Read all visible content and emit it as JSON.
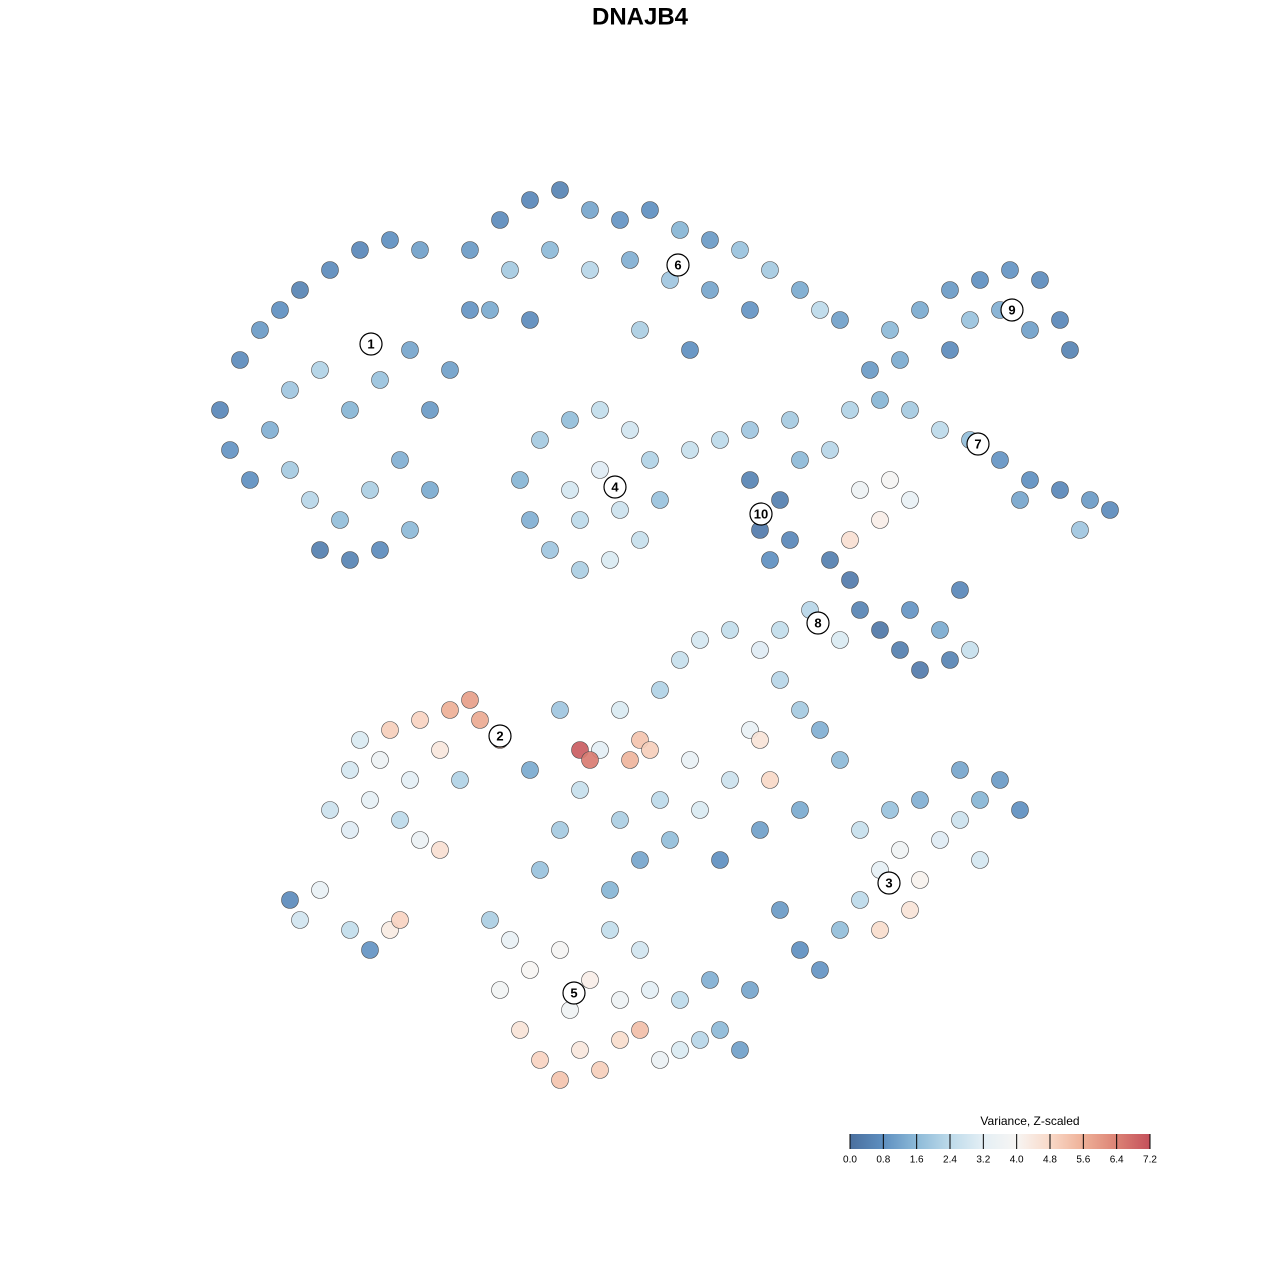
{
  "chart_data": {
    "type": "scatter",
    "title": "DNAJB4",
    "x": [
      4,
      5,
      6,
      8,
      10,
      12,
      15,
      18,
      21,
      24,
      11,
      14,
      17,
      20,
      23,
      11,
      13,
      16,
      19,
      22,
      25,
      14,
      17,
      20,
      23,
      25,
      9,
      7,
      27,
      29,
      29,
      32,
      35,
      38,
      41,
      44,
      47,
      50,
      53,
      56,
      59,
      62,
      64,
      66,
      33,
      37,
      41,
      45,
      49,
      53,
      57,
      31,
      35,
      46,
      51,
      34,
      36,
      39,
      42,
      45,
      47,
      48,
      46,
      43,
      40,
      37,
      35,
      39,
      42,
      44,
      40,
      57,
      60,
      58,
      61,
      59,
      62,
      65,
      51,
      54,
      57,
      61,
      70,
      73,
      76,
      79,
      82,
      85,
      88,
      91,
      93,
      90,
      84,
      69,
      72,
      67,
      68,
      71,
      73,
      70,
      67,
      71,
      74,
      77,
      80,
      83,
      86,
      88,
      89,
      85,
      82,
      79,
      77,
      65,
      67,
      68,
      70,
      72,
      74,
      77,
      79,
      76,
      73,
      63,
      60,
      66,
      78,
      15,
      17,
      19,
      22,
      24,
      17,
      20,
      23,
      26,
      21,
      24,
      27,
      29,
      30,
      32,
      26,
      18,
      28,
      12,
      14,
      17,
      19,
      21,
      22,
      11,
      31,
      33,
      35,
      32,
      34,
      36,
      38,
      40,
      42,
      44,
      46,
      48,
      50,
      52,
      54,
      56,
      39,
      41,
      44,
      47,
      50,
      46,
      43,
      38,
      53,
      57,
      36,
      38,
      40,
      42,
      44,
      46,
      45,
      47,
      40,
      41,
      48,
      50,
      52,
      55,
      58,
      60,
      62,
      64,
      57,
      55,
      52,
      49,
      46,
      43,
      54,
      58,
      62,
      59,
      58,
      66,
      51,
      48,
      44,
      38,
      35,
      60,
      62,
      64,
      66,
      68,
      70,
      72,
      74,
      73,
      70,
      76,
      78,
      80,
      82,
      84,
      78,
      74,
      71,
      80,
      68
    ],
    "values": [
      70,
      66,
      75,
      78,
      80,
      82,
      84,
      86,
      87,
      86,
      72,
      74,
      70,
      73,
      76,
      64,
      61,
      59,
      62,
      65,
      70,
      56,
      55,
      56,
      58,
      62,
      68,
      63,
      74,
      80,
      86,
      89,
      91,
      92,
      90,
      89,
      90,
      88,
      87,
      86,
      84,
      82,
      80,
      79,
      84,
      86,
      84,
      85,
      83,
      82,
      80,
      80,
      79,
      78,
      76,
      63,
      67,
      69,
      70,
      68,
      65,
      61,
      57,
      55,
      54,
      56,
      59,
      62,
      64,
      60,
      59,
      63,
      61,
      58,
      57,
      55,
      65,
      66,
      66,
      67,
      68,
      69,
      71,
      70,
      68,
      67,
      65,
      63,
      62,
      61,
      60,
      58,
      61,
      74,
      75,
      70,
      62,
      63,
      61,
      59,
      57,
      78,
      80,
      82,
      83,
      84,
      83,
      79,
      76,
      78,
      80,
      79,
      76,
      55,
      53,
      50,
      48,
      46,
      44,
      45,
      46,
      48,
      50,
      50,
      48,
      47,
      52,
      30,
      28,
      31,
      29,
      27,
      34,
      35,
      33,
      36,
      38,
      39,
      40,
      41,
      39,
      37,
      26,
      37,
      33,
      19,
      22,
      18,
      16,
      18,
      19,
      21,
      19,
      17,
      14,
      12,
      8,
      5,
      3,
      6,
      4,
      7,
      8,
      5,
      6,
      7,
      8,
      6,
      10,
      13,
      11,
      12,
      11,
      16,
      18,
      16,
      13,
      12,
      24,
      28,
      32,
      36,
      40,
      37,
      35,
      36,
      36,
      35,
      42,
      45,
      47,
      48,
      46,
      43,
      40,
      38,
      38,
      33,
      30,
      27,
      25,
      22,
      25,
      28,
      30,
      33,
      37,
      35,
      35,
      31,
      29,
      40,
      34,
      20,
      16,
      14,
      18,
      21,
      24,
      26,
      23,
      20,
      18,
      27,
      29,
      31,
      33,
      30,
      34,
      31,
      30,
      25,
      28
    ],
    "z": [
      0.6,
      0.9,
      0.7,
      1.0,
      0.8,
      0.5,
      0.7,
      0.6,
      0.8,
      1.1,
      1.9,
      2.2,
      1.5,
      1.8,
      1.2,
      2.0,
      2.3,
      1.7,
      2.1,
      1.4,
      1.0,
      0.4,
      0.5,
      0.7,
      1.6,
      1.3,
      1.4,
      0.8,
      1.1,
      0.9,
      1.0,
      0.7,
      0.6,
      0.5,
      1.2,
      0.9,
      0.8,
      1.5,
      1.0,
      1.8,
      2.0,
      1.3,
      2.4,
      1.1,
      2.0,
      1.6,
      2.3,
      1.4,
      1.9,
      1.2,
      0.9,
      1.3,
      0.7,
      2.1,
      0.8,
      1.5,
      2.0,
      1.7,
      2.5,
      2.8,
      2.2,
      1.8,
      2.6,
      3.0,
      2.1,
      1.9,
      1.4,
      2.9,
      3.1,
      2.7,
      2.4,
      0.5,
      0.4,
      0.3,
      0.6,
      0.8,
      1.6,
      2.3,
      2.6,
      2.4,
      1.9,
      2.0,
      1.5,
      2.0,
      2.4,
      1.7,
      0.9,
      0.8,
      0.6,
      1.0,
      0.7,
      1.9,
      1.2,
      1.0,
      1.3,
      2.2,
      3.6,
      3.9,
      3.4,
      4.2,
      4.6,
      1.6,
      1.3,
      1.0,
      0.8,
      0.9,
      0.7,
      0.6,
      0.5,
      1.1,
      1.4,
      1.8,
      0.7,
      0.4,
      0.3,
      0.5,
      0.2,
      0.4,
      0.3,
      0.5,
      2.6,
      1.3,
      0.9,
      2.3,
      2.5,
      3.0,
      0.6,
      2.7,
      3.1,
      3.3,
      2.4,
      3.5,
      2.9,
      3.6,
      3.2,
      4.4,
      5.0,
      4.9,
      5.6,
      5.9,
      5.7,
      5.3,
      4.6,
      3.0,
      2.2,
      2.8,
      3.4,
      2.5,
      0.9,
      4.3,
      4.9,
      0.7,
      2.1,
      3.4,
      4.0,
      3.8,
      4.5,
      4.9,
      5.2,
      4.4,
      5.0,
      4.7,
      5.3,
      3.5,
      3.0,
      2.3,
      1.6,
      1.1,
      3.7,
      4.2,
      3.6,
      3.2,
      2.4,
      2.8,
      2.5,
      3.9,
      1.4,
      1.2,
      1.8,
      2.0,
      2.6,
      3.2,
      3.0,
      5.2,
      5.5,
      5.0,
      7.0,
      6.5,
      2.2,
      2.6,
      2.9,
      2.5,
      3.1,
      2.3,
      2.0,
      1.4,
      3.4,
      2.7,
      3.0,
      1.7,
      1.2,
      1.5,
      0.8,
      1.1,
      1.3,
      4.8,
      4.5,
      1.6,
      3.4,
      2.4,
      2.1,
      1.9,
      1.3,
      1.0,
      0.8,
      0.9,
      1.7,
      2.4,
      3.3,
      3.7,
      4.1,
      4.5,
      4.7,
      3.1,
      2.7,
      1.5,
      1.0,
      0.8,
      1.2,
      1.4,
      1.8,
      2.9,
      2.6
    ],
    "xlim": [
      0,
      96
    ],
    "ylim": [
      0,
      94
    ],
    "clusters": [
      {
        "label": "1",
        "x": 19.1,
        "y": 76.6
      },
      {
        "label": "2",
        "x": 32,
        "y": 37.4
      },
      {
        "label": "3",
        "x": 70.9,
        "y": 22.7
      },
      {
        "label": "4",
        "x": 43.5,
        "y": 62.3
      },
      {
        "label": "5",
        "x": 39.4,
        "y": 11.7
      },
      {
        "label": "6",
        "x": 49.8,
        "y": 84.5
      },
      {
        "label": "7",
        "x": 79.8,
        "y": 66.6
      },
      {
        "label": "8",
        "x": 63.8,
        "y": 48.7
      },
      {
        "label": "9",
        "x": 83.2,
        "y": 80
      },
      {
        "label": "10",
        "x": 58.1,
        "y": 59.6
      }
    ],
    "colorbar": {
      "title": "Variance, Z-scaled",
      "clim": [
        0,
        7.2
      ],
      "ticks": [
        {
          "value": 0,
          "label": "0.0"
        },
        0.8,
        1.6,
        2.4,
        3.2,
        {
          "value": 4,
          "label": "4.0"
        },
        4.8,
        5.6,
        6.4,
        7.2
      ],
      "colors": [
        "#4a6f9e",
        "#5e8fc0",
        "#8dbad8",
        "#bddaea",
        "#e4eff5",
        "#f7f5f3",
        "#f9d9c8",
        "#eeb097",
        "#dc8275",
        "#c4505b"
      ]
    }
  }
}
